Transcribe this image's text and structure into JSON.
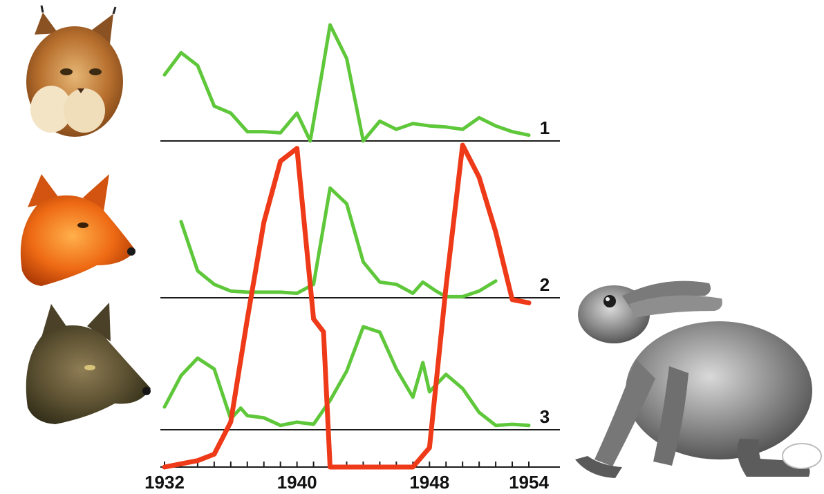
{
  "chart_data": {
    "type": "line",
    "title": "",
    "xlabel": "",
    "ylabel": "",
    "xlim": [
      1932,
      1954
    ],
    "x_tick_labels": [
      "1932",
      "1940",
      "1948",
      "1954"
    ],
    "minor_ticks_every": 1,
    "grid": false,
    "legend": "none (rows identified by numbers 1-3 and animal pictures)",
    "panels": [
      {
        "row_label": "1",
        "animal_picture": "lynx",
        "color": "#5ec73a",
        "x": [
          1932,
          1933,
          1934,
          1935,
          1936,
          1937,
          1938,
          1939,
          1940,
          1940.8,
          1941.5,
          1942,
          1943,
          1944,
          1945,
          1946,
          1947,
          1948,
          1949,
          1950,
          1951,
          1952,
          1953,
          1954
        ],
        "y": [
          0.57,
          0.76,
          0.65,
          0.3,
          0.24,
          0.08,
          0.08,
          0.07,
          0.24,
          0.0,
          0.58,
          1.0,
          0.71,
          0.0,
          0.17,
          0.1,
          0.15,
          0.13,
          0.12,
          0.1,
          0.2,
          0.13,
          0.08,
          0.05
        ]
      },
      {
        "row_label": "2",
        "animal_picture": "fox",
        "color": "#5ec73a",
        "x": [
          1933,
          1934,
          1935,
          1936,
          1937,
          1938,
          1939,
          1940,
          1941,
          1942,
          1943,
          1944,
          1945,
          1946,
          1947,
          1947.6,
          1948.4,
          1949,
          1950,
          1951,
          1952
        ],
        "y": [
          0.68,
          0.24,
          0.12,
          0.06,
          0.05,
          0.05,
          0.05,
          0.04,
          0.12,
          0.98,
          0.84,
          0.32,
          0.14,
          0.12,
          0.04,
          0.14,
          0.06,
          0.01,
          0.01,
          0.06,
          0.15
        ]
      },
      {
        "row_label": "3",
        "animal_picture": "wolf",
        "color": "#5ec73a",
        "x": [
          1932,
          1933,
          1934,
          1935,
          1936,
          1936.6,
          1937,
          1938,
          1939,
          1940,
          1941,
          1942,
          1943,
          1944,
          1945,
          1946,
          1947,
          1947.6,
          1948,
          1949,
          1950,
          1951,
          1952,
          1953,
          1954
        ],
        "y": [
          0.21,
          0.5,
          0.66,
          0.56,
          0.1,
          0.2,
          0.13,
          0.11,
          0.04,
          0.07,
          0.05,
          0.27,
          0.54,
          0.95,
          0.9,
          0.56,
          0.3,
          0.62,
          0.35,
          0.51,
          0.38,
          0.16,
          0.04,
          0.05,
          0.04
        ]
      }
    ],
    "overlay_series": {
      "animal_picture": "hare",
      "color": "#ee3a18",
      "x": [
        1932,
        1933,
        1934,
        1935,
        1936,
        1937,
        1938,
        1939,
        1940,
        1941,
        1941.6,
        1942,
        1943,
        1944,
        1945,
        1946,
        1947,
        1948,
        1949,
        1950,
        1951,
        1952,
        1953,
        1954
      ],
      "y": [
        0.0,
        0.01,
        0.02,
        0.04,
        0.14,
        0.46,
        0.76,
        0.95,
        0.99,
        0.46,
        0.42,
        0.0,
        0.0,
        0.0,
        0.0,
        0.0,
        0.0,
        0.06,
        0.56,
        1.0,
        0.9,
        0.73,
        0.52,
        0.51
      ]
    }
  }
}
